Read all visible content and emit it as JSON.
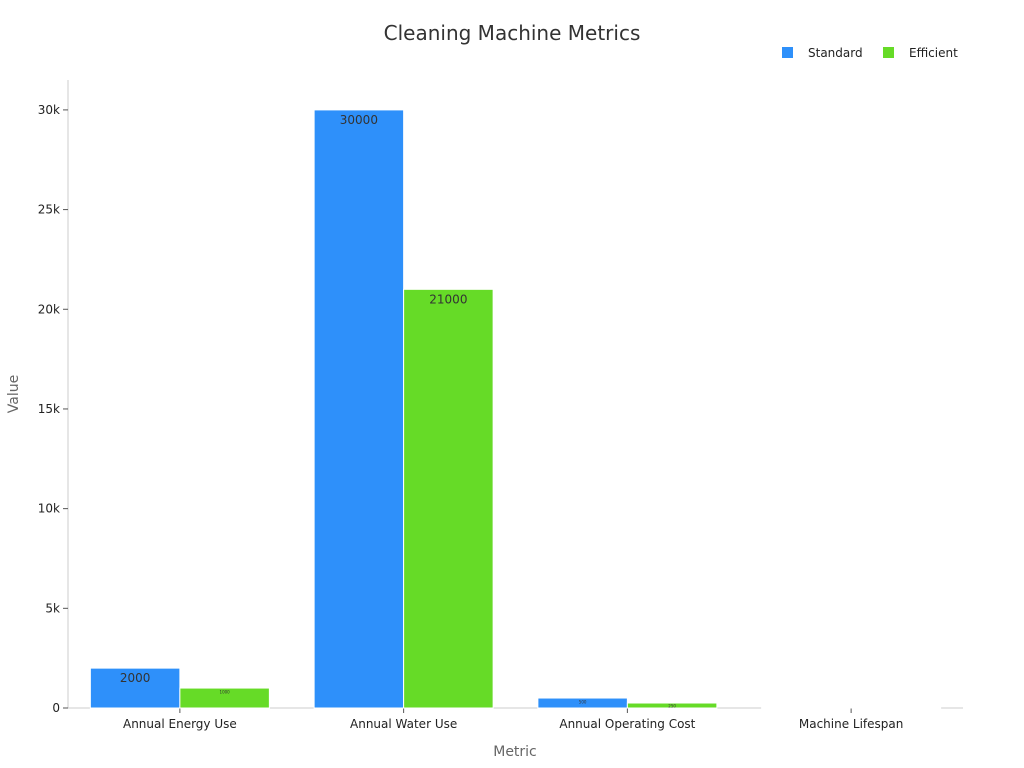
{
  "chart_data": {
    "type": "bar",
    "title": "Cleaning Machine Metrics",
    "xlabel": "Metric",
    "ylabel": "Value",
    "categories": [
      "Annual Energy Use",
      "Annual Water Use",
      "Annual Operating Cost",
      "Machine Lifespan"
    ],
    "series": [
      {
        "name": "Standard",
        "values": [
          2000,
          30000,
          500,
          10
        ],
        "color": "#2e90fa"
      },
      {
        "name": "Efficient",
        "values": [
          1000,
          21000,
          250,
          15
        ],
        "color": "#66db27"
      }
    ],
    "data_labels": [
      [
        "2000",
        "30000",
        "500",
        ""
      ],
      [
        "1000",
        "21000",
        "250",
        ""
      ]
    ],
    "ylim": [
      0,
      31500
    ],
    "yticks": [
      0,
      5000,
      10000,
      15000,
      20000,
      25000,
      30000
    ],
    "ytick_labels": [
      "0",
      "5k",
      "10k",
      "15k",
      "20k",
      "25k",
      "30k"
    ],
    "legend_position": "top-right",
    "grid": false
  }
}
